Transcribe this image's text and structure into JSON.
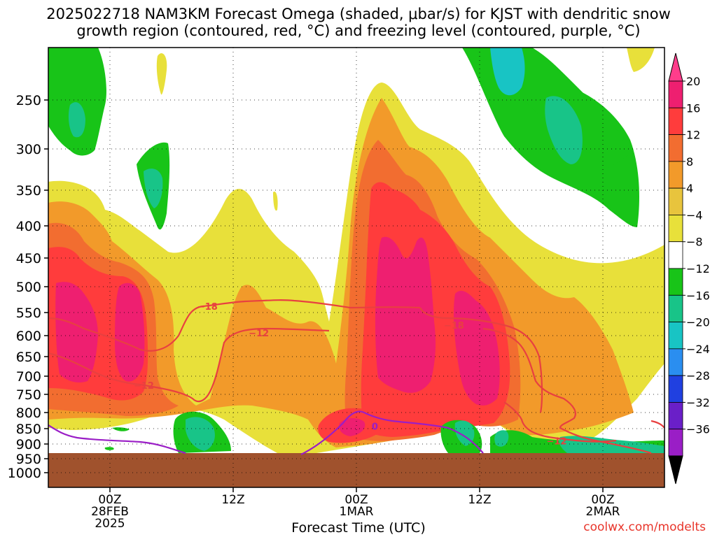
{
  "title_line1": "2025022718 NAM3KM Forecast Omega (shaded, μbar/s) for KJST with dendritic snow",
  "title_line2": "growth region (contoured, red, °C) and freezing level (contoured, purple, °C)",
  "credit": "coolwx.com/modelts",
  "chart_data": {
    "type": "heatmap",
    "xlabel": "Forecast Time (UTC)",
    "x_ticks": [
      {
        "h": 0,
        "lines": [
          "00Z",
          "28FEB",
          "2025"
        ]
      },
      {
        "h": 12,
        "lines": [
          "12Z"
        ]
      },
      {
        "h": 24,
        "lines": [
          "00Z",
          "1MAR"
        ]
      },
      {
        "h": 36,
        "lines": [
          "12Z"
        ]
      },
      {
        "h": 48,
        "lines": [
          "00Z",
          "2MAR"
        ]
      }
    ],
    "x_range_hours": [
      -6,
      54
    ],
    "y_axis": "pressure (mb)",
    "y_ticks": [
      250,
      300,
      350,
      400,
      450,
      500,
      550,
      600,
      650,
      700,
      750,
      800,
      850,
      900,
      950,
      1000
    ],
    "y_range": [
      200,
      1025
    ],
    "ground_level_mb": 928,
    "colorbar": {
      "labels": [
        "20",
        "16",
        "12",
        "8",
        "4",
        "−4",
        "−8",
        "−12",
        "−16",
        "−20",
        "−24",
        "−28",
        "−32",
        "−36"
      ],
      "colors": [
        "#ff3d8b",
        "#ee1f70",
        "#ff3c3c",
        "#f26d30",
        "#f29a2a",
        "#e8c43d",
        "#e8e03a",
        "#ffffff",
        "#18c418",
        "#18c488",
        "#18c4c4",
        "#2a8ef0",
        "#2040e0",
        "#6a1fc8",
        "#9a1ec6",
        "#a0a0a0"
      ]
    },
    "contour_labels": [
      {
        "text": "−18",
        "h": 9.5,
        "p": 538,
        "color": "#e84040"
      },
      {
        "text": "−12",
        "h": 14.5,
        "p": 594,
        "color": "#e84040"
      },
      {
        "text": "−12",
        "h": 3.3,
        "p": 725,
        "color": "#e84040"
      },
      {
        "text": "−18",
        "h": 33.5,
        "p": 577,
        "color": "#e84040"
      },
      {
        "text": "−12",
        "h": 43.5,
        "p": 890,
        "color": "#e84040"
      },
      {
        "text": "0",
        "h": 25.8,
        "p": 842,
        "color": "#9a1ec6"
      }
    ]
  }
}
